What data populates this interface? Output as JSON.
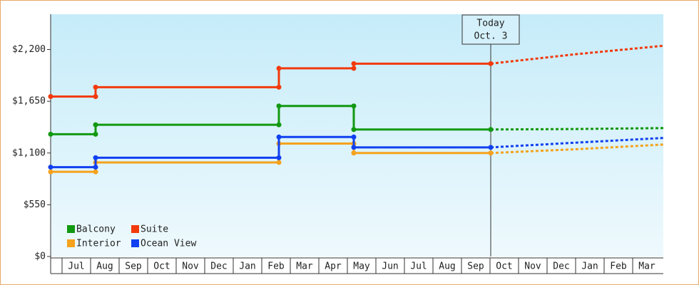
{
  "chart_data": {
    "type": "line",
    "ylim": [
      0,
      2575
    ],
    "yticks": [
      {
        "value": 0,
        "label": "$0"
      },
      {
        "value": 550,
        "label": "$550"
      },
      {
        "value": 1100,
        "label": "$1,100"
      },
      {
        "value": 1650,
        "label": "$1,650"
      },
      {
        "value": 2200,
        "label": "$2,200"
      }
    ],
    "xlim": [
      -0.4,
      21.075
    ],
    "xticks": [
      {
        "value": 0.5,
        "label": "Jul"
      },
      {
        "value": 1.5,
        "label": "Aug"
      },
      {
        "value": 2.5,
        "label": "Sep"
      },
      {
        "value": 3.5,
        "label": "Oct"
      },
      {
        "value": 4.5,
        "label": "Nov"
      },
      {
        "value": 5.5,
        "label": "Dec"
      },
      {
        "value": 6.5,
        "label": "Jan"
      },
      {
        "value": 7.5,
        "label": "Feb"
      },
      {
        "value": 8.5,
        "label": "Mar"
      },
      {
        "value": 9.5,
        "label": "Apr"
      },
      {
        "value": 10.5,
        "label": "May"
      },
      {
        "value": 11.5,
        "label": "Jun"
      },
      {
        "value": 12.5,
        "label": "Jul"
      },
      {
        "value": 13.5,
        "label": "Aug"
      },
      {
        "value": 14.5,
        "label": "Sep"
      },
      {
        "value": 15.5,
        "label": "Oct"
      },
      {
        "value": 16.5,
        "label": "Nov"
      },
      {
        "value": 17.5,
        "label": "Dec"
      },
      {
        "value": 18.5,
        "label": "Jan"
      },
      {
        "value": 19.5,
        "label": "Feb"
      },
      {
        "value": 20.5,
        "label": "Mar"
      }
    ],
    "today": {
      "x": 15.025,
      "label": [
        "Today",
        "Oct. 3"
      ]
    },
    "series": [
      {
        "name": "Balcony",
        "color": "#129912",
        "x": [
          -0.4,
          1.175,
          1.175,
          7.6,
          7.6,
          10.225,
          10.225,
          15.025
        ],
        "values": [
          1300,
          1300,
          1400,
          1400,
          1600,
          1600,
          1350,
          1350
        ],
        "forecast_x": [
          15.025,
          18,
          21.075
        ],
        "forecast_values": [
          1350,
          1355,
          1365
        ]
      },
      {
        "name": "Suite",
        "color": "#f23a0c",
        "x": [
          -0.4,
          1.175,
          1.175,
          7.6,
          7.6,
          10.225,
          10.225,
          15.025
        ],
        "values": [
          1700,
          1700,
          1800,
          1800,
          2000,
          2000,
          2050,
          2050
        ],
        "forecast_x": [
          15.025,
          18,
          21.075
        ],
        "forecast_values": [
          2050,
          2150,
          2240
        ]
      },
      {
        "name": "Interior",
        "color": "#f5a21c",
        "x": [
          -0.4,
          1.175,
          1.175,
          7.6,
          7.6,
          10.225,
          10.225,
          15.025
        ],
        "values": [
          900,
          900,
          1000,
          1000,
          1200,
          1200,
          1100,
          1100
        ],
        "forecast_x": [
          15.025,
          18,
          21.075
        ],
        "forecast_values": [
          1100,
          1140,
          1190
        ]
      },
      {
        "name": "Ocean View",
        "color": "#1040f0",
        "x": [
          -0.4,
          1.175,
          1.175,
          7.6,
          7.6,
          10.225,
          10.225,
          15.025
        ],
        "values": [
          950,
          950,
          1050,
          1050,
          1270,
          1270,
          1160,
          1160
        ],
        "forecast_x": [
          15.025,
          18,
          21.075
        ],
        "forecast_values": [
          1160,
          1210,
          1260
        ]
      }
    ]
  }
}
